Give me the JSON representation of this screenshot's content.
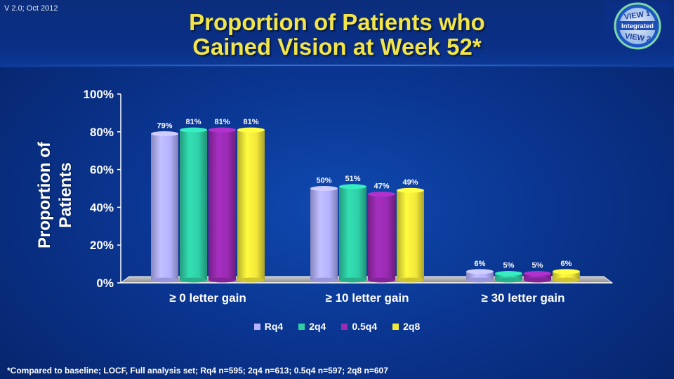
{
  "header": {
    "version": "V 2.0; Oct 2012",
    "title_line1": "Proportion of Patients who",
    "title_line2": "Gained Vision at Week 52*"
  },
  "logo": {
    "top_text": "VIEW 1",
    "middle_text": "Integrated",
    "bottom_text": "VIEW 2"
  },
  "chart_data": {
    "type": "bar",
    "title": "Proportion of Patients who Gained Vision at Week 52*",
    "xlabel": "",
    "ylabel": "Proportion of Patients",
    "ylim": [
      0,
      100
    ],
    "yticks": [
      "0%",
      "20%",
      "40%",
      "60%",
      "80%",
      "100%"
    ],
    "categories": [
      "≥ 0 letter gain",
      "≥ 10 letter gain",
      "≥ 30 letter gain"
    ],
    "series": [
      {
        "name": "Rq4",
        "values": [
          79,
          50,
          6
        ],
        "labels": [
          "79%",
          "50%",
          "6%"
        ],
        "color": "#b4b2ff"
      },
      {
        "name": "2q4",
        "values": [
          81,
          51,
          5
        ],
        "labels": [
          "81%",
          "51%",
          "5%"
        ],
        "color": "#2fcfa6"
      },
      {
        "name": "0.5q4",
        "values": [
          81,
          47,
          5
        ],
        "labels": [
          "81%",
          "47%",
          "5%"
        ],
        "color": "#9a2bb3"
      },
      {
        "name": "2q8",
        "values": [
          81,
          49,
          6
        ],
        "labels": [
          "81%",
          "49%",
          "6%"
        ],
        "color": "#f3e83a"
      }
    ],
    "grid": false,
    "legend_position": "bottom"
  },
  "footnote": "*Compared to baseline; LOCF, Full analysis set; Rq4 n=595; 2q4 n=613; 0.5q4 n=597; 2q8 n=607"
}
